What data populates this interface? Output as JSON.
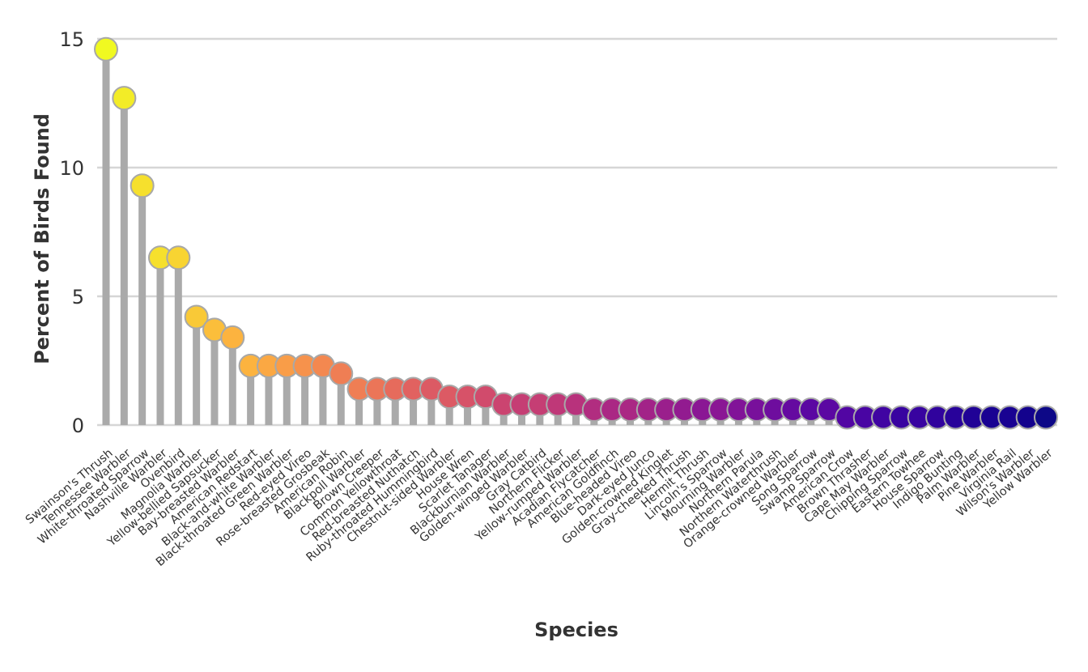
{
  "chart_data": {
    "type": "lollipop",
    "xlabel": "Species",
    "ylabel": "Percent of Birds Found",
    "ylim": [
      0,
      15
    ],
    "yticks": [
      0,
      5,
      10,
      15
    ],
    "grid": true,
    "colormap": "plasma",
    "categories": [
      "Swainson's Thrush",
      "Tennessee Warbler",
      "White-throated Sparrow",
      "Nashville Warbler",
      "Ovenbird",
      "Magnolia Warbler",
      "Yellow-bellied Sapsucker",
      "Bay-breasted Warbler",
      "American Redstart",
      "Black-and-white Warbler",
      "Black-throated Green Warbler",
      "Red-eyed Vireo",
      "Rose-breasted Grosbeak",
      "American Robin",
      "Blackpoll Warbler",
      "Brown Creeper",
      "Common Yellowthroat",
      "Red-breasted Nuthatch",
      "Ruby-throated Hummingbird",
      "Chestnut-sided Warbler",
      "House Wren",
      "Scarlet Tanager",
      "Blackburnian Warbler",
      "Golden-winged Warbler",
      "Gray Catbird",
      "Northern Flicker",
      "Yellow-rumped Warbler",
      "Acadian Flycatcher",
      "American Goldfinch",
      "Blue-headed Vireo",
      "Dark-eyed Junco",
      "Golden-crowned Kinglet",
      "Gray-cheeked Thrush",
      "Hermit Thrush",
      "Lincoln's Sparrow",
      "Mourning Warbler",
      "Northern Parula",
      "Northern Waterthrush",
      "Orange-crowned Warbler",
      "Song Sparrow",
      "Swamp Sparrow",
      "American Crow",
      "Brown Thrasher",
      "Cape May Warbler",
      "Chipping Sparrow",
      "Eastern Towhee",
      "House Sparrow",
      "Indigo Bunting",
      "Palm Warbler",
      "Pine Warbler",
      "Virginia Rail",
      "Wilson's Warbler",
      "Yellow Warbler"
    ],
    "values": [
      14.6,
      12.7,
      9.3,
      6.5,
      6.5,
      4.2,
      3.7,
      3.4,
      2.3,
      2.3,
      2.3,
      2.3,
      2.3,
      2.0,
      1.4,
      1.4,
      1.4,
      1.4,
      1.4,
      1.1,
      1.1,
      1.1,
      0.8,
      0.8,
      0.8,
      0.8,
      0.8,
      0.6,
      0.6,
      0.6,
      0.6,
      0.6,
      0.6,
      0.6,
      0.6,
      0.6,
      0.6,
      0.6,
      0.6,
      0.6,
      0.6,
      0.3,
      0.3,
      0.3,
      0.3,
      0.3,
      0.3,
      0.3,
      0.3,
      0.3,
      0.3,
      0.3,
      0.3
    ],
    "colors": [
      "#f0f921",
      "#f3ec27",
      "#f6e02d",
      "#f8d432",
      "#f9c937",
      "#fbbe3b",
      "#fcb33f",
      "#fba843",
      "#f99d48",
      "#f6924c",
      "#f38850",
      "#ef7e54",
      "#eb7558",
      "#e66b5c",
      "#e16260",
      "#dc5a64",
      "#d75268",
      "#d14b6c",
      "#cb4470",
      "#c53e74",
      "#bf3878",
      "#b8327c",
      "#b12d80",
      "#aa2884",
      "#a22388",
      "#9a1f8c",
      "#921b90",
      "#8a1794",
      "#811398",
      "#78109b",
      "#6e0d9e",
      "#650aa0",
      "#5b08a2",
      "#5206a3",
      "#4905a3",
      "#4004a2",
      "#3803a0",
      "#30029d",
      "#28029a",
      "#200296",
      "#190292",
      "#13028d",
      "#0d0887"
    ]
  }
}
